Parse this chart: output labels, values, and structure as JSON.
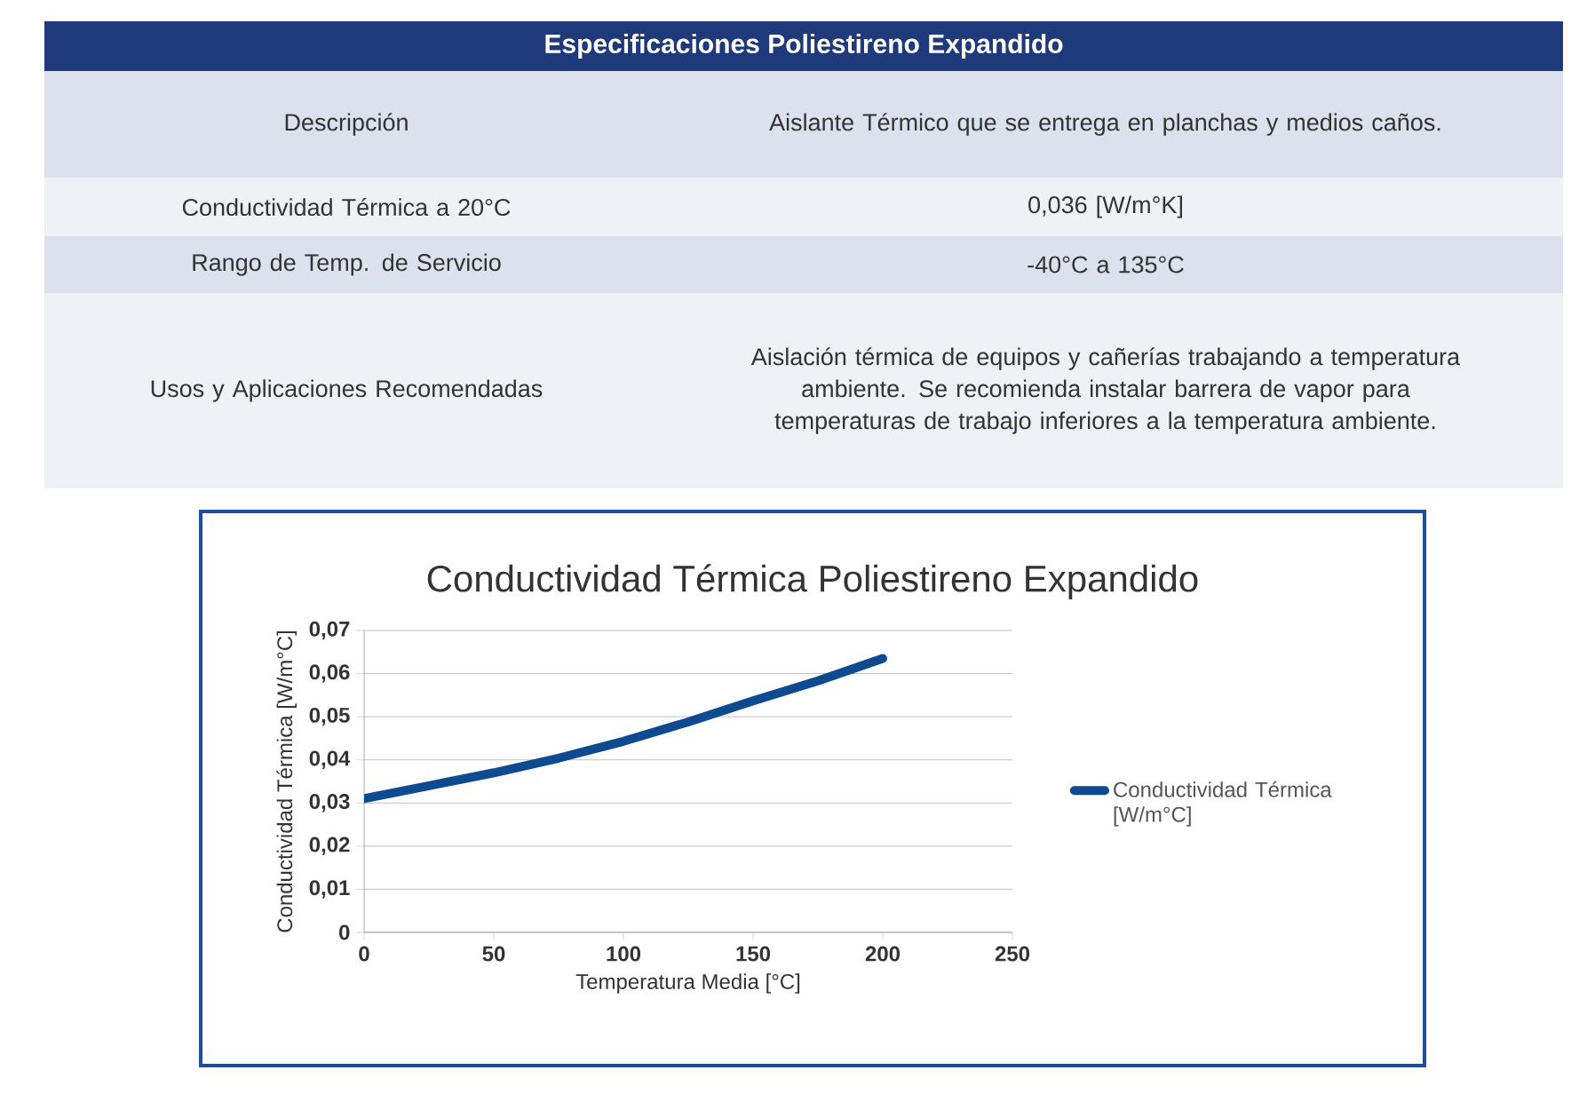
{
  "chart_data": [
    {
      "type": "other",
      "title": "Especificaciones Poliestireno Expandido",
      "annotations": [
        "Descripción",
        "Aislante Térmico que se entrega en planchas y medios caños.",
        "Conductividad Térmica a 20°C",
        "0,036  [W/m°K]",
        "Rango de Temp. de Servicio",
        "-40°C a 135°C",
        "Usos y Aplicaciones Recomendadas",
        "Aislación térmica de equipos y cañerías trabajando a temperatura ambiente. Se recomienda instalar barrera de vapor para temperaturas de trabajo inferiores a la temperatura ambiente."
      ]
    },
    {
      "type": "line",
      "title": "Conductividad Térmica Poliestireno Expandido",
      "xlabel": "Temperatura Media [°C]",
      "ylabel": "Conductividad Térmica [W/m°C]",
      "x": [
        0,
        25,
        50,
        75,
        100,
        125,
        150,
        175,
        200
      ],
      "series": [
        {
          "name": "Conductividad Térmica [W/m°C]",
          "color": "#0d4a8f",
          "values": [
            0.031,
            0.034,
            0.037,
            0.0404,
            0.0443,
            0.0488,
            0.0537,
            0.0583,
            0.0635
          ]
        }
      ],
      "xlim": [
        0,
        250
      ],
      "xticks": [
        0,
        50,
        100,
        150,
        200,
        250
      ],
      "ylim": [
        0,
        0.07
      ],
      "yticks": [
        0,
        {
          "value": 0.01,
          "label": "0,01"
        },
        {
          "value": 0.02,
          "label": "0,02"
        },
        {
          "value": 0.03,
          "label": "0,03"
        },
        {
          "value": 0.04,
          "label": "0,04"
        },
        {
          "value": 0.05,
          "label": "0,05"
        },
        {
          "value": 0.06,
          "label": "0,06"
        },
        {
          "value": 0.07,
          "label": "0,07"
        }
      ],
      "grid": "y",
      "legend": "right",
      "marker": "none",
      "line_style": "solid"
    }
  ]
}
